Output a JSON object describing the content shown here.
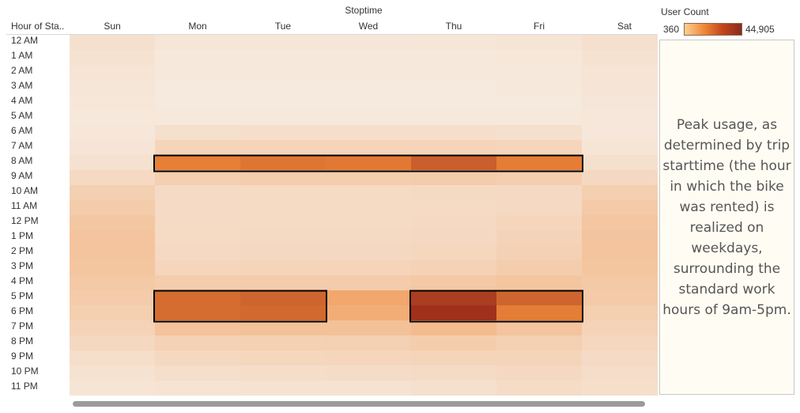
{
  "chart_data": {
    "type": "heatmap",
    "title": "",
    "column_title": "Stoptime",
    "row_header": "Hour of Sta..",
    "columns": [
      "Sun",
      "Mon",
      "Tue",
      "Wed",
      "Thu",
      "Fri",
      "Sat"
    ],
    "rows": [
      "12 AM",
      "1 AM",
      "2 AM",
      "3 AM",
      "4 AM",
      "5 AM",
      "6 AM",
      "7 AM",
      "8 AM",
      "9 AM",
      "10 AM",
      "11 AM",
      "12 PM",
      "1 PM",
      "2 PM",
      "3 PM",
      "4 PM",
      "5 PM",
      "6 PM",
      "7 PM",
      "8 PM",
      "9 PM",
      "10 PM",
      "11 PM"
    ],
    "values": [
      [
        3200,
        1500,
        1500,
        1400,
        1500,
        1900,
        3300
      ],
      [
        2700,
        800,
        800,
        800,
        800,
        1100,
        2800
      ],
      [
        2000,
        500,
        500,
        500,
        500,
        700,
        2100
      ],
      [
        1500,
        400,
        400,
        400,
        400,
        500,
        1600
      ],
      [
        1100,
        400,
        400,
        400,
        400,
        450,
        1200
      ],
      [
        800,
        700,
        700,
        700,
        700,
        700,
        900
      ],
      [
        900,
        3500,
        3600,
        3600,
        3600,
        3300,
        1000
      ],
      [
        1600,
        7000,
        7200,
        7200,
        7200,
        6900,
        1800
      ],
      [
        3000,
        33000,
        34500,
        34000,
        38000,
        33500,
        3200
      ],
      [
        5500,
        9000,
        9500,
        9500,
        10000,
        9200,
        5800
      ],
      [
        8500,
        5000,
        5100,
        5100,
        5400,
        5600,
        9000
      ],
      [
        10000,
        4800,
        4900,
        4900,
        5200,
        5600,
        10500
      ],
      [
        11500,
        5000,
        5100,
        5100,
        5500,
        6500,
        11800
      ],
      [
        12500,
        5200,
        5300,
        5300,
        5800,
        7500,
        12500
      ],
      [
        12500,
        5600,
        5800,
        5800,
        6300,
        8200,
        12500
      ],
      [
        12000,
        6500,
        7000,
        7200,
        7800,
        9500,
        12000
      ],
      [
        11000,
        9500,
        10000,
        10000,
        11000,
        12000,
        11000
      ],
      [
        10000,
        36000,
        37000,
        22000,
        43000,
        37000,
        10500
      ],
      [
        9000,
        36000,
        36500,
        20000,
        44905,
        33500,
        9000
      ],
      [
        7500,
        13000,
        13500,
        13500,
        15500,
        12500,
        7500
      ],
      [
        6000,
        8000,
        8300,
        8500,
        9500,
        8500,
        6200
      ],
      [
        4000,
        6000,
        6200,
        6500,
        7000,
        7000,
        4800
      ],
      [
        2800,
        4000,
        4200,
        4500,
        5000,
        5800,
        4200
      ],
      [
        1800,
        2400,
        2600,
        2800,
        3300,
        4600,
        3800
      ]
    ],
    "scale": {
      "title": "User Count",
      "min": 360,
      "max": 44905,
      "min_label": "360",
      "max_label": "44,905"
    },
    "highlights": [
      {
        "row_start": "8 AM",
        "row_end": "8 AM",
        "col_start": "Mon",
        "col_end": "Fri"
      },
      {
        "row_start": "5 PM",
        "row_end": "6 PM",
        "col_start": "Mon",
        "col_end": "Tue"
      },
      {
        "row_start": "5 PM",
        "row_end": "6 PM",
        "col_start": "Thu",
        "col_end": "Fri"
      }
    ],
    "annotation": "Peak usage, as determined by trip starttime (the hour in which the bike was rented) is realized on weekdays, surrounding the standard work hours of 9am-5pm."
  },
  "colors": {
    "low": "#f6e9dd",
    "mid": "#f08a3a",
    "high": "#a0301c",
    "highlight_border": "#000000"
  }
}
